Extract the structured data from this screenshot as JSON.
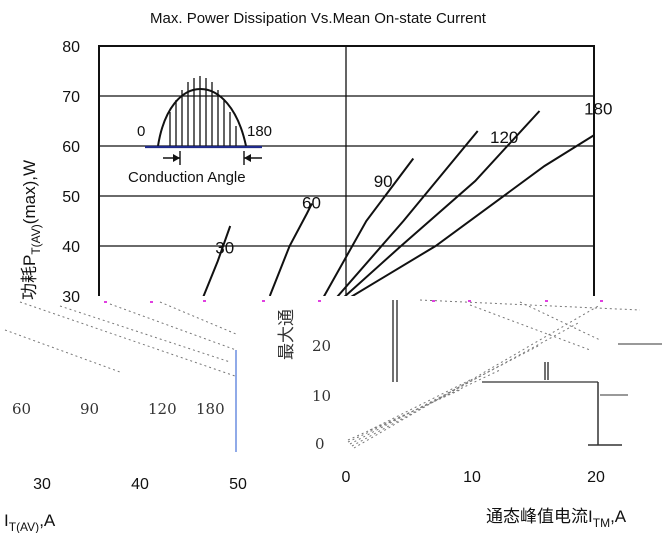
{
  "chart_data": {
    "type": "line",
    "title": "Max. Power Dissipation Vs.Mean On-state Current",
    "ylabel": "功耗P",
    "ylabel_sub": "T(AV)",
    "ylabel_suffix": "(max),W",
    "ylim": [
      30,
      80
    ],
    "xlim": [
      30,
      50
    ],
    "y_ticks": [
      "80",
      "70",
      "60",
      "50",
      "40",
      "30"
    ],
    "y_tick_values": [
      80,
      70,
      60,
      50,
      40,
      30
    ],
    "grid": true,
    "series": [
      {
        "name": "30",
        "label_at": [
          34.7,
          38.5
        ],
        "points": [
          [
            33.9,
            26
          ],
          [
            34.8,
            37
          ],
          [
            35.3,
            44
          ]
        ]
      },
      {
        "name": "60",
        "label_at": [
          38.2,
          47.5
        ],
        "points": [
          [
            36.9,
            30
          ],
          [
            37.7,
            40
          ],
          [
            38.4,
            46.5
          ],
          [
            38.6,
            48.5
          ]
        ]
      },
      {
        "name": "90",
        "label_at": [
          41.1,
          51.8
        ],
        "points": [
          [
            37.6,
            21
          ],
          [
            39.1,
            30
          ],
          [
            40.8,
            45
          ],
          [
            42.7,
            57.5
          ]
        ]
      },
      {
        "name": "120",
        "label_at": [
          45.8,
          60.6
        ],
        "points": [
          [
            38.2,
            20
          ],
          [
            39.3,
            28
          ],
          [
            42.3,
            45
          ],
          [
            45.3,
            63
          ]
        ]
      },
      {
        "name": "180",
        "label_at": [
          49.6,
          66.3
        ],
        "points": [
          [
            38.6,
            24
          ],
          [
            42.2,
            40
          ],
          [
            45.2,
            53
          ],
          [
            47.8,
            67
          ]
        ]
      },
      {
        "name": "",
        "label_at": null,
        "points": [
          [
            38.9,
            26
          ],
          [
            43.6,
            40
          ],
          [
            48,
            56
          ],
          [
            53.2,
            72
          ]
        ]
      }
    ],
    "inset": {
      "label_left": "0",
      "label_right": "180",
      "caption": "Conduction Angle"
    },
    "overlay": {
      "curve_labels": [
        "60",
        "90",
        "120",
        "180"
      ],
      "x_ticks": [
        "30",
        "40",
        "50"
      ],
      "xlabel_prefix": "I",
      "xlabel_sub": "T(AV)",
      "xlabel_suffix": ",A",
      "y2_ticks": [
        "20",
        "10",
        "0"
      ],
      "x2_ticks": [
        "0",
        "10",
        "20"
      ],
      "ylabel2": "最大通",
      "xlabel2": "通态峰值电流I",
      "xlabel2_sub": "TM",
      "xlabel2_suffix": ",A"
    }
  }
}
